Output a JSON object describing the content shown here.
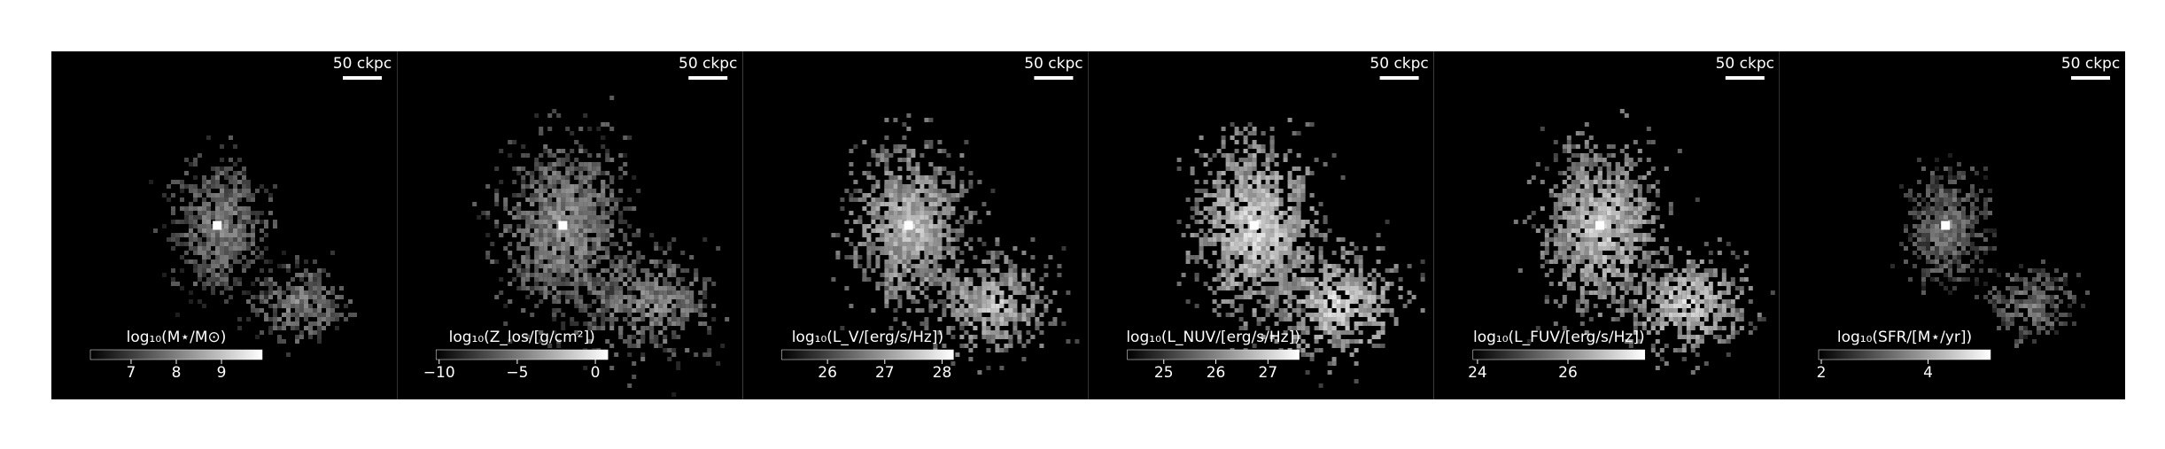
{
  "panels": [
    {
      "scalebar": "50 ckpc",
      "colorbar": {
        "label": "log₁₀(M⋆/M⊙)",
        "lim": [
          6.1,
          9.9
        ],
        "ticks": [
          7,
          8,
          9
        ]
      }
    },
    {
      "scalebar": "50 ckpc",
      "colorbar": {
        "label": "log₁₀(Z_los/[g/cm²])",
        "lim": [
          -10.2,
          0.8
        ],
        "ticks": [
          {
            "value": -10,
            "label": "−10"
          },
          {
            "value": -5,
            "label": "−5"
          },
          0
        ]
      }
    },
    {
      "scalebar": "50 ckpc",
      "colorbar": {
        "label": "log₁₀(L_V/[erg/s/Hz])",
        "lim": [
          25.2,
          28.2
        ],
        "ticks": [
          26,
          27,
          28
        ]
      }
    },
    {
      "scalebar": "50 ckpc",
      "colorbar": {
        "label": "log₁₀(L_NUV/[erg/s/Hz])",
        "lim": [
          24.3,
          27.6
        ],
        "ticks": [
          25,
          26,
          27
        ]
      }
    },
    {
      "scalebar": "50 ckpc",
      "colorbar": {
        "label": "log₁₀(L_FUV/[erg/s/Hz])",
        "lim": [
          23.9,
          27.7
        ],
        "ticks": [
          24,
          26
        ]
      }
    },
    {
      "scalebar": "50 ckpc",
      "colorbar": {
        "label": "log₁₀(SFR/[M⋆/yr])",
        "lim": [
          1.95,
          5.17
        ],
        "ticks": [
          2,
          4
        ]
      }
    }
  ]
}
